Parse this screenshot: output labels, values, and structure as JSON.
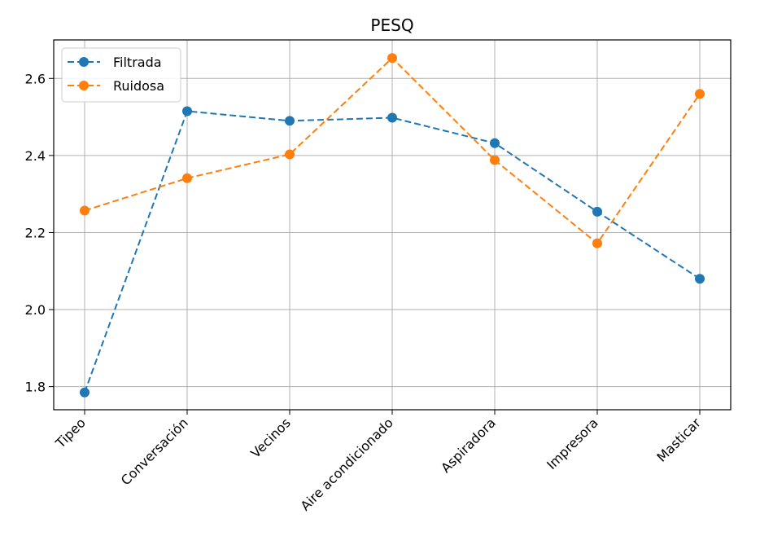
{
  "chart_data": {
    "type": "line",
    "title": "PESQ",
    "xlabel": "",
    "ylabel": "",
    "categories": [
      "Tipeo",
      "Conversación",
      "Vecinos",
      "Aire acondicionado",
      "Aspiradora",
      "Impresora",
      "Masticar"
    ],
    "series": [
      {
        "name": "Filtrada",
        "color": "#1f77b4",
        "values": [
          1.785,
          2.515,
          2.49,
          2.498,
          2.432,
          2.254,
          2.08
        ]
      },
      {
        "name": "Ruidosa",
        "color": "#ff7f0e",
        "values": [
          2.257,
          2.341,
          2.403,
          2.653,
          2.388,
          2.172,
          2.56
        ]
      }
    ],
    "ylim": [
      1.74,
      2.7
    ],
    "yticks": [
      1.8,
      2.0,
      2.2,
      2.4,
      2.6
    ],
    "ytick_labels": [
      "1.8",
      "2.0",
      "2.2",
      "2.4",
      "2.6"
    ],
    "grid": true,
    "line_style": "dashed",
    "marker": "circle",
    "legend_position": "top-left"
  }
}
